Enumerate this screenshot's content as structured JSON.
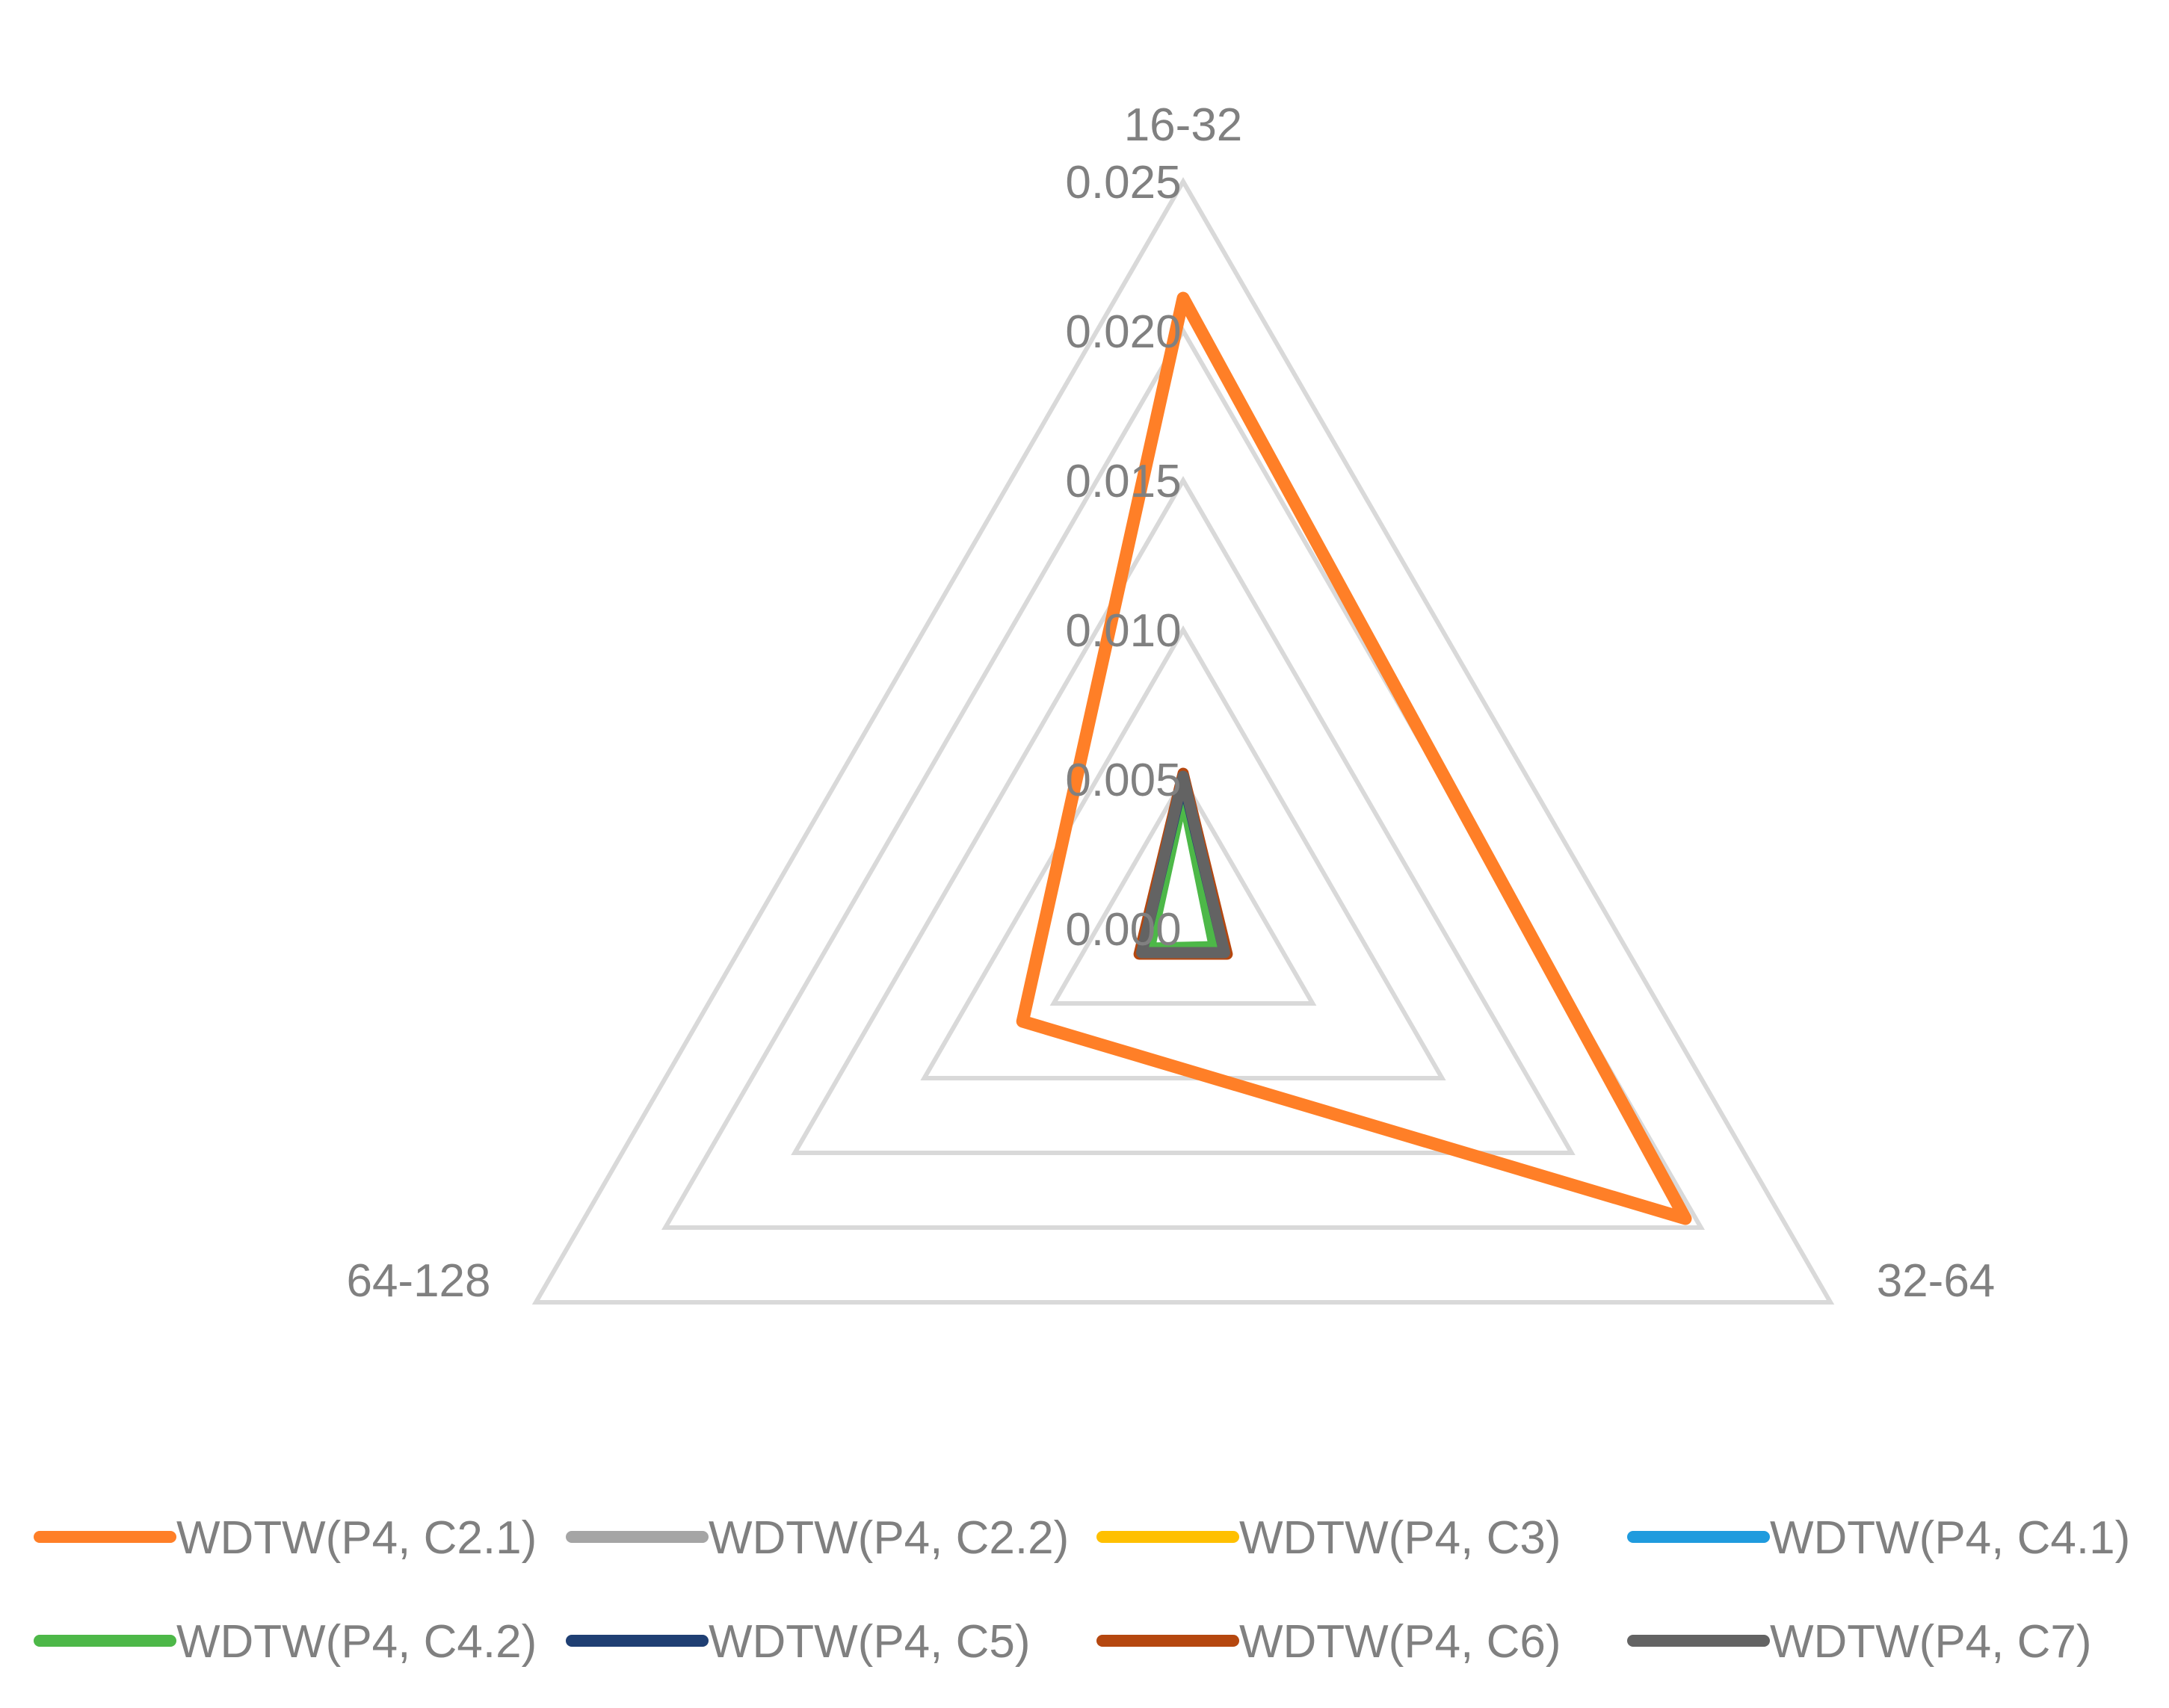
{
  "chart_data": {
    "type": "radar",
    "categories": [
      "16-32",
      "32-64",
      "64-128"
    ],
    "rlim": [
      0,
      0.025
    ],
    "ticks": [
      "0.000",
      "0.005",
      "0.010",
      "0.015",
      "0.020",
      "0.025"
    ],
    "tick_values": [
      0,
      0.005,
      0.01,
      0.015,
      0.02,
      0.025
    ],
    "grid": true,
    "legend_position": "bottom",
    "series": [
      {
        "name": "WDTW(P4, C2.1)",
        "values": [
          0.0211,
          0.0194,
          0.0062
        ],
        "color": "#FF7F27"
      },
      {
        "name": "WDTW(P4, C2.2)",
        "values": [
          0.005,
          0.0016,
          0.0016
        ],
        "color": "#A5A5A5"
      },
      {
        "name": "WDTW(P4, C3)",
        "values": [
          0.0049,
          0.0015,
          0.0015
        ],
        "color": "#FFC000"
      },
      {
        "name": "WDTW(P4, C4.1)",
        "values": [
          0.0049,
          0.0015,
          0.0015
        ],
        "color": "#1F9BDE"
      },
      {
        "name": "WDTW(P4, C4.2)",
        "values": [
          0.0045,
          0.0012,
          0.0013
        ],
        "color": "#4DB848"
      },
      {
        "name": "WDTW(P4, C5)",
        "values": [
          0.005,
          0.0016,
          0.0016
        ],
        "color": "#1F3F73"
      },
      {
        "name": "WDTW(P4, C6)",
        "values": [
          0.0052,
          0.0017,
          0.0017
        ],
        "color": "#B5470F"
      },
      {
        "name": "WDTW(P4, C7)",
        "values": [
          0.0051,
          0.0016,
          0.0016
        ],
        "color": "#636363"
      }
    ]
  }
}
